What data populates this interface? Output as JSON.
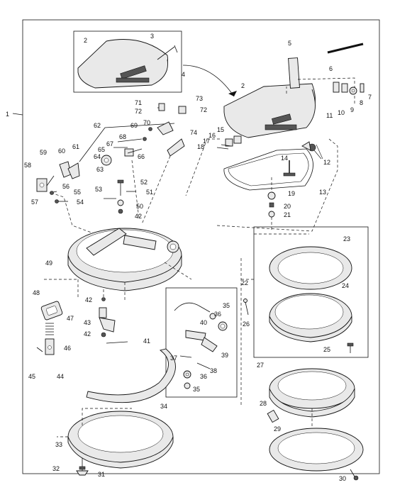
{
  "figure": {
    "callouts": {
      "c1": "1",
      "c2a": "2",
      "c2b": "2",
      "c3": "3",
      "c4": "4",
      "c5": "5",
      "c6": "6",
      "c7": "7",
      "c8": "8",
      "c9": "9",
      "c10": "10",
      "c11": "11",
      "c12": "12",
      "c13": "13",
      "c14": "14",
      "c15": "15",
      "c16": "16",
      "c17": "17",
      "c18": "18",
      "c19": "19",
      "c20": "20",
      "c21": "21",
      "c22": "22",
      "c23": "23",
      "c24": "24",
      "c25": "25",
      "c26": "26",
      "c27": "27",
      "c28": "28",
      "c29": "29",
      "c30": "30",
      "c31": "31",
      "c32": "32",
      "c33": "33",
      "c34": "34",
      "c35a": "35",
      "c35b": "35",
      "c36a": "36",
      "c36b": "36",
      "c37": "37",
      "c38": "38",
      "c39": "39",
      "c40": "40",
      "c41": "41",
      "c42a": "42",
      "c42b": "42",
      "c42c": "42",
      "c43": "43",
      "c44": "44",
      "c45": "45",
      "c46": "46",
      "c47": "47",
      "c48": "48",
      "c49": "49",
      "c50": "50",
      "c51": "51",
      "c52": "52",
      "c53": "53",
      "c54": "54",
      "c55": "55",
      "c56": "56",
      "c57": "57",
      "c58": "58",
      "c59": "59",
      "c60": "60",
      "c61": "61",
      "c62": "62",
      "c63": "63",
      "c64": "64",
      "c65": "65",
      "c66": "66",
      "c67": "67",
      "c68": "68",
      "c69": "69",
      "c70": "70",
      "c71": "71",
      "c72a": "72",
      "c72b": "72",
      "c73": "73",
      "c74": "74"
    }
  }
}
